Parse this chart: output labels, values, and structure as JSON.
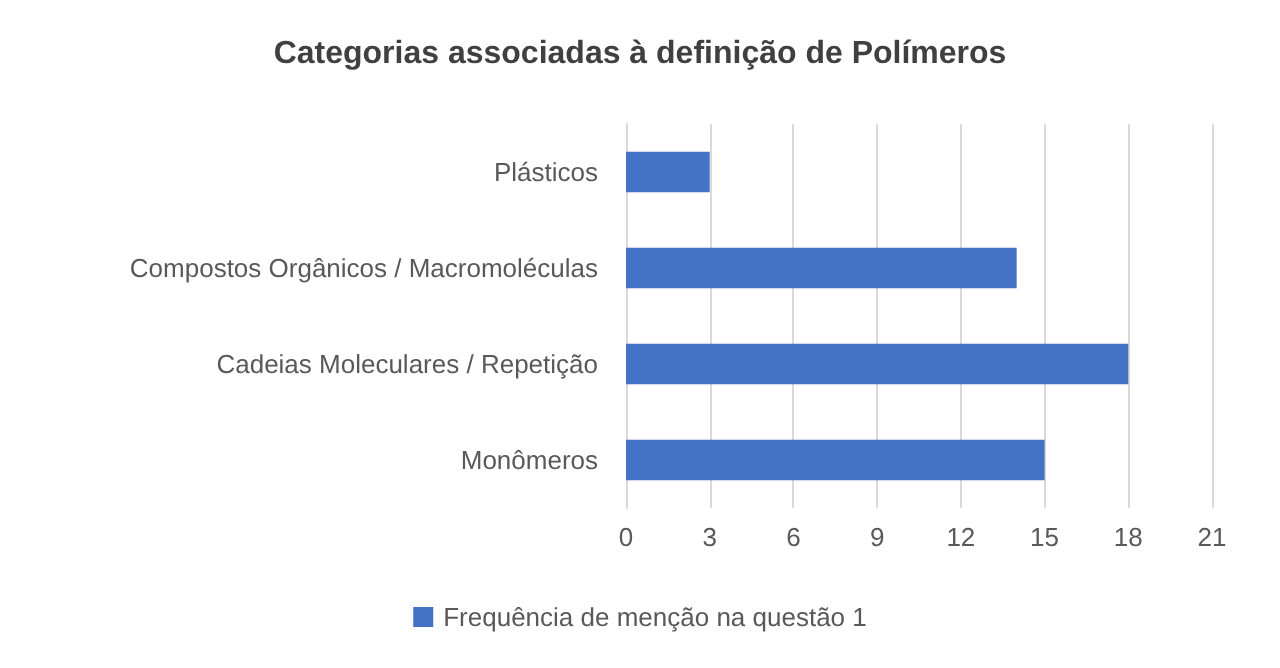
{
  "chart_data": {
    "type": "bar",
    "orientation": "horizontal",
    "title": "Categorias associadas à definição de Polímeros",
    "categories": [
      "Plásticos",
      "Compostos Orgânicos / Macromoléculas",
      "Cadeias Moleculares / Repetição",
      "Monômeros"
    ],
    "series": [
      {
        "name": "Frequência de menção na questão 1",
        "color": "#4472c4",
        "values": [
          3,
          14,
          18,
          15
        ]
      }
    ],
    "xlim": [
      0,
      21
    ],
    "xticks": [
      0,
      3,
      6,
      9,
      12,
      15,
      18,
      21
    ],
    "grid": "x",
    "legend": "bottom"
  }
}
